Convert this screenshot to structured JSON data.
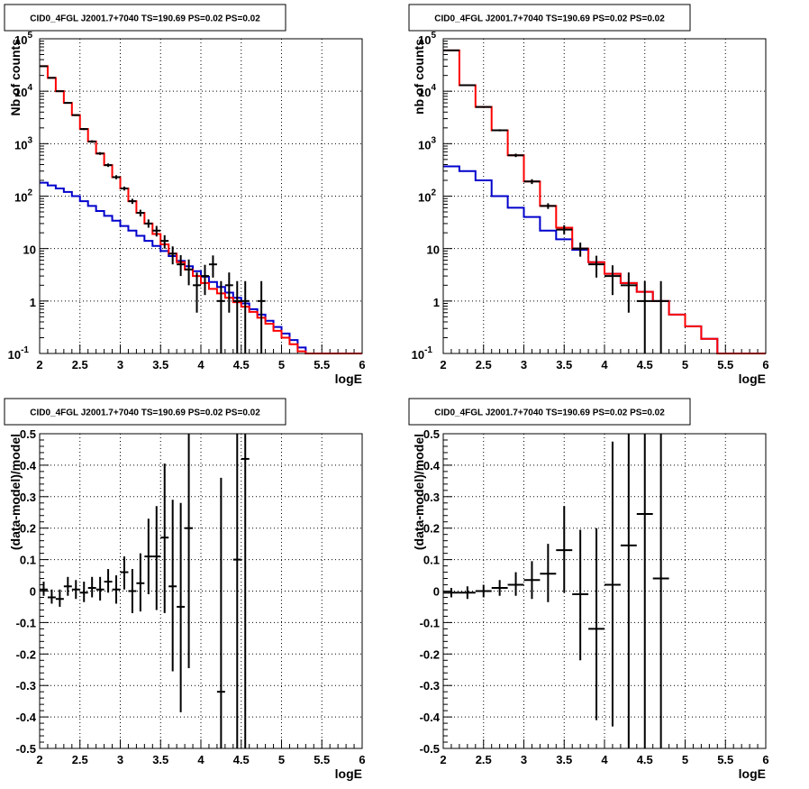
{
  "panels": [
    {
      "id": "spectrum-left",
      "title": "CID0_4FGL J2001.7+7040 TS=190.69 PS=0.02 PS=0.02",
      "xlabel": "logE",
      "ylabel": "Nb of counts",
      "yscale": "log",
      "xlim": [
        2,
        6
      ],
      "ylim": [
        0.1,
        100000
      ],
      "xticks": [
        {
          "v": 2,
          "label": "2"
        },
        {
          "v": 2.5,
          "label": "2.5"
        },
        {
          "v": 3,
          "label": "3"
        },
        {
          "v": 3.5,
          "label": "3.5"
        },
        {
          "v": 4,
          "label": "4"
        },
        {
          "v": 4.5,
          "label": "4.5"
        },
        {
          "v": 5,
          "label": "5"
        },
        {
          "v": 5.5,
          "label": "5.5"
        },
        {
          "v": 6,
          "label": "6"
        }
      ],
      "yticks": [
        {
          "v": 0.1,
          "base": "10",
          "exp": "-1"
        },
        {
          "v": 1,
          "base": "1",
          "exp": ""
        },
        {
          "v": 10,
          "base": "10",
          "exp": ""
        },
        {
          "v": 100,
          "base": "10",
          "exp": "2"
        },
        {
          "v": 1000,
          "base": "10",
          "exp": "3"
        },
        {
          "v": 10000,
          "base": "10",
          "exp": "4"
        },
        {
          "v": 100000,
          "base": "10",
          "exp": "5"
        }
      ],
      "chart_data": {
        "type": "line",
        "bin_edges": [
          2.0,
          2.1,
          2.2,
          2.3,
          2.4,
          2.5,
          2.6,
          2.7,
          2.8,
          2.9,
          3.0,
          3.1,
          3.2,
          3.3,
          3.4,
          3.5,
          3.6,
          3.7,
          3.8,
          3.9,
          4.0,
          4.1,
          4.2,
          4.3,
          4.4,
          4.5,
          4.6,
          4.7,
          4.8,
          4.9,
          5.0,
          5.1,
          5.2,
          5.3,
          5.4,
          5.5,
          5.6,
          5.7,
          5.8,
          5.9,
          6.0
        ],
        "model_total": [
          30000,
          18000,
          10000,
          6000,
          3500,
          1900,
          1100,
          650,
          390,
          230,
          140,
          80,
          48,
          30,
          19,
          12,
          8,
          5.5,
          4,
          3,
          2.2,
          1.7,
          1.4,
          1.15,
          0.95,
          0.78,
          0.62,
          0.48,
          0.37,
          0.27,
          0.2,
          0.15,
          0.11,
          0.1,
          0.1,
          0.1,
          0.1,
          0.1,
          0.1,
          0.1
        ],
        "model_source": [
          180,
          160,
          140,
          120,
          100,
          80,
          65,
          52,
          42,
          34,
          27,
          22,
          17.5,
          14,
          11.2,
          9,
          7.2,
          5.8,
          4.6,
          3.7,
          2.9,
          2.3,
          1.85,
          1.45,
          1.15,
          0.9,
          0.7,
          0.55,
          0.42,
          0.32,
          0.24,
          0.18,
          0.13,
          0.1,
          0.1,
          0.1,
          0.1,
          0.1,
          0.1,
          0.1
        ],
        "data_points": [
          {
            "x": 2.05,
            "y": 30000,
            "lo": 29650,
            "hi": 30350
          },
          {
            "x": 2.15,
            "y": 18000,
            "lo": 17730,
            "hi": 18270
          },
          {
            "x": 2.25,
            "y": 10000,
            "lo": 9800,
            "hi": 10200
          },
          {
            "x": 2.35,
            "y": 6000,
            "lo": 5850,
            "hi": 6150
          },
          {
            "x": 2.45,
            "y": 3500,
            "lo": 3380,
            "hi": 3620
          },
          {
            "x": 2.55,
            "y": 1900,
            "lo": 1820,
            "hi": 1980
          },
          {
            "x": 2.65,
            "y": 1100,
            "lo": 1040,
            "hi": 1160
          },
          {
            "x": 2.75,
            "y": 650,
            "lo": 610,
            "hi": 690
          },
          {
            "x": 2.85,
            "y": 390,
            "lo": 360,
            "hi": 420
          },
          {
            "x": 2.95,
            "y": 230,
            "lo": 210,
            "hi": 250
          },
          {
            "x": 3.05,
            "y": 140,
            "lo": 128,
            "hi": 152
          },
          {
            "x": 3.15,
            "y": 80,
            "lo": 71,
            "hi": 89
          },
          {
            "x": 3.25,
            "y": 48,
            "lo": 41,
            "hi": 55
          },
          {
            "x": 3.35,
            "y": 30,
            "lo": 25,
            "hi": 36
          },
          {
            "x": 3.45,
            "y": 22,
            "lo": 17,
            "hi": 27
          },
          {
            "x": 3.55,
            "y": 14,
            "lo": 10,
            "hi": 18
          },
          {
            "x": 3.65,
            "y": 8,
            "lo": 5,
            "hi": 11
          },
          {
            "x": 3.75,
            "y": 5,
            "lo": 3,
            "hi": 7.5
          },
          {
            "x": 3.85,
            "y": 4,
            "lo": 2,
            "hi": 6.2
          },
          {
            "x": 3.95,
            "y": 2,
            "lo": 0.6,
            "hi": 3.5
          },
          {
            "x": 4.05,
            "y": 3,
            "lo": 1.3,
            "hi": 4.9
          },
          {
            "x": 4.15,
            "y": 5,
            "lo": 2.8,
            "hi": 7.4
          },
          {
            "x": 4.25,
            "y": 1,
            "lo": 0.1,
            "hi": 2.4
          },
          {
            "x": 4.35,
            "y": 2,
            "lo": 0.6,
            "hi": 3.5
          },
          {
            "x": 4.45,
            "y": 1,
            "lo": 0.1,
            "hi": 2.4
          },
          {
            "x": 4.55,
            "y": 1,
            "lo": 0.1,
            "hi": 2.4
          },
          {
            "x": 4.75,
            "y": 1,
            "lo": 0.1,
            "hi": 2.4
          }
        ]
      }
    },
    {
      "id": "spectrum-right",
      "title": "CID0_4FGL J2001.7+7040 TS=190.69 PS=0.02 PS=0.02",
      "xlabel": "logE",
      "ylabel": "nb of counts",
      "yscale": "log",
      "xlim": [
        2,
        6
      ],
      "ylim": [
        0.1,
        100000
      ],
      "xticks": [
        {
          "v": 2,
          "label": "2"
        },
        {
          "v": 2.5,
          "label": "2.5"
        },
        {
          "v": 3,
          "label": "3"
        },
        {
          "v": 3.5,
          "label": "3.5"
        },
        {
          "v": 4,
          "label": "4"
        },
        {
          "v": 4.5,
          "label": "4.5"
        },
        {
          "v": 5,
          "label": "5"
        },
        {
          "v": 5.5,
          "label": "5.5"
        },
        {
          "v": 6,
          "label": "6"
        }
      ],
      "yticks": [
        {
          "v": 0.1,
          "base": "10",
          "exp": "-1"
        },
        {
          "v": 1,
          "base": "1",
          "exp": ""
        },
        {
          "v": 10,
          "base": "10",
          "exp": ""
        },
        {
          "v": 100,
          "base": "10",
          "exp": "2"
        },
        {
          "v": 1000,
          "base": "10",
          "exp": "3"
        },
        {
          "v": 10000,
          "base": "10",
          "exp": "4"
        },
        {
          "v": 100000,
          "base": "10",
          "exp": "5"
        }
      ],
      "chart_data": {
        "type": "line",
        "bin_edges": [
          2.0,
          2.2,
          2.4,
          2.6,
          2.8,
          3.0,
          3.2,
          3.4,
          3.6,
          3.8,
          4.0,
          4.2,
          4.4,
          4.6,
          4.8,
          5.0,
          5.2,
          5.4,
          5.6,
          5.8,
          6.0
        ],
        "model_total": [
          60000,
          13000,
          5000,
          1800,
          600,
          190,
          65,
          25,
          10,
          5.5,
          3.3,
          2.2,
          1.5,
          1.0,
          0.55,
          0.33,
          0.19,
          0.1,
          0.1,
          0.1
        ],
        "model_source": [
          370,
          300,
          200,
          100,
          60,
          40,
          22,
          15,
          9.5,
          5.5,
          3.3,
          2.2,
          1.5,
          1.0,
          0.55,
          0.33,
          0.19,
          0.1,
          0.1,
          0.1
        ],
        "data_points": [
          {
            "x": 2.1,
            "y": 60000,
            "lo": 59500,
            "hi": 60500
          },
          {
            "x": 2.3,
            "y": 13000,
            "lo": 12770,
            "hi": 13230
          },
          {
            "x": 2.5,
            "y": 5000,
            "lo": 4860,
            "hi": 5140
          },
          {
            "x": 2.7,
            "y": 1800,
            "lo": 1720,
            "hi": 1880
          },
          {
            "x": 2.9,
            "y": 600,
            "lo": 555,
            "hi": 645
          },
          {
            "x": 3.1,
            "y": 190,
            "lo": 170,
            "hi": 210
          },
          {
            "x": 3.3,
            "y": 65,
            "lo": 57,
            "hi": 73
          },
          {
            "x": 3.5,
            "y": 23,
            "lo": 18.5,
            "hi": 28
          },
          {
            "x": 3.7,
            "y": 10,
            "lo": 7,
            "hi": 13
          },
          {
            "x": 3.9,
            "y": 5,
            "lo": 2.8,
            "hi": 7.3
          },
          {
            "x": 4.1,
            "y": 3,
            "lo": 1.3,
            "hi": 4.8
          },
          {
            "x": 4.3,
            "y": 2,
            "lo": 0.6,
            "hi": 3.5
          },
          {
            "x": 4.5,
            "y": 1,
            "lo": 0.1,
            "hi": 2.4
          },
          {
            "x": 4.7,
            "y": 1,
            "lo": 0.1,
            "hi": 2.4
          }
        ]
      }
    },
    {
      "id": "residual-left",
      "title": "CID0_4FGL J2001.7+7040 TS=190.69 PS=0.02 PS=0.02",
      "xlabel": "logE",
      "ylabel": "(data-model)/model",
      "yscale": "linear",
      "xlim": [
        2,
        6
      ],
      "ylim": [
        -0.5,
        0.5
      ],
      "xticks": [
        {
          "v": 2,
          "label": "2"
        },
        {
          "v": 2.5,
          "label": "2.5"
        },
        {
          "v": 3,
          "label": "3"
        },
        {
          "v": 3.5,
          "label": "3.5"
        },
        {
          "v": 4,
          "label": "4"
        },
        {
          "v": 4.5,
          "label": "4.5"
        },
        {
          "v": 5,
          "label": "5"
        },
        {
          "v": 5.5,
          "label": "5.5"
        },
        {
          "v": 6,
          "label": "6"
        }
      ],
      "yticks": [
        {
          "v": -0.5,
          "label": "-0.5"
        },
        {
          "v": -0.4,
          "label": "-0.4"
        },
        {
          "v": -0.3,
          "label": "-0.3"
        },
        {
          "v": -0.2,
          "label": "-0.2"
        },
        {
          "v": -0.1,
          "label": "-0.1"
        },
        {
          "v": 0,
          "label": "0"
        },
        {
          "v": 0.1,
          "label": "0.1"
        },
        {
          "v": 0.2,
          "label": "0.2"
        },
        {
          "v": 0.3,
          "label": "0.3"
        },
        {
          "v": 0.4,
          "label": "0.4"
        },
        {
          "v": 0.5,
          "label": "0.5"
        }
      ],
      "chart_data": {
        "type": "scatter",
        "half_width": 0.05,
        "points": [
          {
            "x": 2.05,
            "y": 0.005,
            "lo": -0.015,
            "hi": 0.03
          },
          {
            "x": 2.15,
            "y": -0.02,
            "lo": -0.04,
            "hi": 0.005
          },
          {
            "x": 2.25,
            "y": -0.025,
            "lo": -0.05,
            "hi": 0.005
          },
          {
            "x": 2.35,
            "y": 0.015,
            "lo": -0.015,
            "hi": 0.045
          },
          {
            "x": 2.45,
            "y": 0.005,
            "lo": -0.025,
            "hi": 0.035
          },
          {
            "x": 2.55,
            "y": -0.005,
            "lo": -0.035,
            "hi": 0.03
          },
          {
            "x": 2.65,
            "y": 0.01,
            "lo": -0.02,
            "hi": 0.045
          },
          {
            "x": 2.75,
            "y": 0.005,
            "lo": -0.03,
            "hi": 0.045
          },
          {
            "x": 2.85,
            "y": 0.03,
            "lo": -0.005,
            "hi": 0.07
          },
          {
            "x": 2.95,
            "y": 0.005,
            "lo": -0.04,
            "hi": 0.05
          },
          {
            "x": 3.05,
            "y": 0.06,
            "lo": 0.005,
            "hi": 0.11
          },
          {
            "x": 3.15,
            "y": 0.0,
            "lo": -0.07,
            "hi": 0.07
          },
          {
            "x": 3.25,
            "y": 0.025,
            "lo": -0.065,
            "hi": 0.12
          },
          {
            "x": 3.35,
            "y": 0.11,
            "lo": -0.01,
            "hi": 0.23
          },
          {
            "x": 3.45,
            "y": 0.11,
            "lo": -0.06,
            "hi": 0.27
          },
          {
            "x": 3.55,
            "y": 0.17,
            "lo": -0.07,
            "hi": 0.405
          },
          {
            "x": 3.65,
            "y": 0.015,
            "lo": -0.255,
            "hi": 0.29
          },
          {
            "x": 3.75,
            "y": -0.05,
            "lo": -0.385,
            "hi": 0.28
          },
          {
            "x": 3.85,
            "y": 0.2,
            "lo": -0.245,
            "hi": 0.5
          },
          {
            "x": 4.25,
            "y": -0.32,
            "lo": -0.5,
            "hi": 0.36
          },
          {
            "x": 4.45,
            "y": 0.1,
            "lo": -0.5,
            "hi": 0.5
          },
          {
            "x": 4.55,
            "y": 0.42,
            "lo": -0.5,
            "hi": 0.5
          }
        ]
      }
    },
    {
      "id": "residual-right",
      "title": "CID0_4FGL J2001.7+7040 TS=190.69 PS=0.02 PS=0.02",
      "xlabel": "logE",
      "ylabel": "(data-model)/model",
      "yscale": "linear",
      "xlim": [
        2,
        6
      ],
      "ylim": [
        -0.5,
        0.5
      ],
      "xticks": [
        {
          "v": 2,
          "label": "2"
        },
        {
          "v": 2.5,
          "label": "2.5"
        },
        {
          "v": 3,
          "label": "3"
        },
        {
          "v": 3.5,
          "label": "3.5"
        },
        {
          "v": 4,
          "label": "4"
        },
        {
          "v": 4.5,
          "label": "4.5"
        },
        {
          "v": 5,
          "label": "5"
        },
        {
          "v": 5.5,
          "label": "5.5"
        },
        {
          "v": 6,
          "label": "6"
        }
      ],
      "yticks": [
        {
          "v": -0.5,
          "label": "-0.5"
        },
        {
          "v": -0.4,
          "label": "-0.4"
        },
        {
          "v": -0.3,
          "label": "-0.3"
        },
        {
          "v": -0.2,
          "label": "-0.2"
        },
        {
          "v": -0.1,
          "label": "-0.1"
        },
        {
          "v": 0,
          "label": "0"
        },
        {
          "v": 0.1,
          "label": "0.1"
        },
        {
          "v": 0.2,
          "label": "0.2"
        },
        {
          "v": 0.3,
          "label": "0.3"
        },
        {
          "v": 0.4,
          "label": "0.4"
        },
        {
          "v": 0.5,
          "label": "0.5"
        }
      ],
      "chart_data": {
        "type": "scatter",
        "half_width": 0.1,
        "points": [
          {
            "x": 2.1,
            "y": -0.005,
            "lo": -0.02,
            "hi": 0.01
          },
          {
            "x": 2.3,
            "y": -0.005,
            "lo": -0.025,
            "hi": 0.015
          },
          {
            "x": 2.5,
            "y": 0.0,
            "lo": -0.02,
            "hi": 0.02
          },
          {
            "x": 2.7,
            "y": 0.01,
            "lo": -0.015,
            "hi": 0.035
          },
          {
            "x": 2.9,
            "y": 0.02,
            "lo": -0.015,
            "hi": 0.06
          },
          {
            "x": 3.1,
            "y": 0.035,
            "lo": -0.025,
            "hi": 0.095
          },
          {
            "x": 3.3,
            "y": 0.055,
            "lo": -0.035,
            "hi": 0.15
          },
          {
            "x": 3.5,
            "y": 0.13,
            "lo": -0.005,
            "hi": 0.27
          },
          {
            "x": 3.7,
            "y": -0.01,
            "lo": -0.22,
            "hi": 0.195
          },
          {
            "x": 3.9,
            "y": -0.12,
            "lo": -0.41,
            "hi": 0.2
          },
          {
            "x": 4.1,
            "y": 0.02,
            "lo": -0.43,
            "hi": 0.475
          },
          {
            "x": 4.3,
            "y": 0.145,
            "lo": -0.5,
            "hi": 0.5
          },
          {
            "x": 4.5,
            "y": 0.245,
            "lo": -0.5,
            "hi": 0.5
          },
          {
            "x": 4.7,
            "y": 0.04,
            "lo": -0.5,
            "hi": 0.5
          }
        ]
      }
    }
  ],
  "colors": {
    "model_total": "#ff0000",
    "model_source": "#0000cc",
    "data": "#000000",
    "grid": "#000000",
    "frame": "#000000"
  }
}
